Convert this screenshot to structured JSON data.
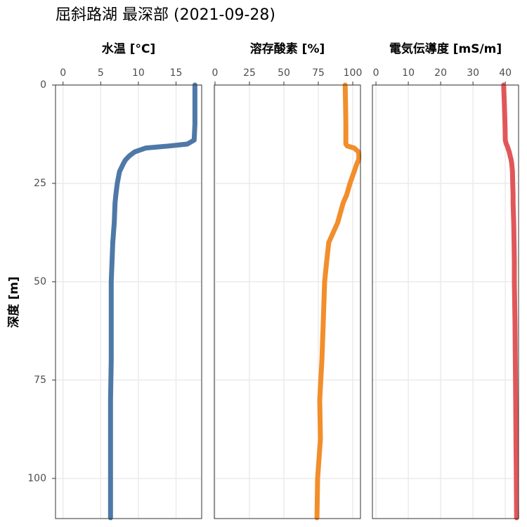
{
  "title": "屈斜路湖 最深部 (2021-09-28)",
  "y_axis": {
    "label": "深度 [m]",
    "ylim": [
      0,
      110.2
    ],
    "yticks": [
      0,
      25,
      50,
      75,
      100
    ],
    "inverted": true,
    "grid": true
  },
  "chart_data": [
    {
      "type": "line",
      "xlabel": "水温 [°C]",
      "xlim": [
        -1.0,
        18.4
      ],
      "xticks": [
        0,
        5,
        10,
        15
      ],
      "grid": true,
      "color": "#4e79a7",
      "y": [
        0,
        5,
        10,
        14,
        15,
        15.5,
        16,
        17,
        18,
        19,
        20,
        22,
        25,
        28,
        30,
        35,
        40,
        45,
        50,
        60,
        70,
        80,
        90,
        100,
        110
      ],
      "values": [
        17.5,
        17.5,
        17.5,
        17.4,
        16.5,
        14,
        11,
        9.5,
        8.8,
        8.3,
        8.0,
        7.5,
        7.2,
        7.0,
        6.9,
        6.8,
        6.6,
        6.5,
        6.4,
        6.4,
        6.4,
        6.3,
        6.3,
        6.3,
        6.3
      ]
    },
    {
      "type": "line",
      "xlabel": "溶存酸素 [%]",
      "xlim": [
        -0.5,
        105.6
      ],
      "xticks": [
        0,
        25,
        50,
        75,
        100
      ],
      "grid": true,
      "color": "#f28e2b",
      "y": [
        0,
        5,
        10,
        14,
        15,
        15.5,
        16,
        17,
        18,
        19,
        20,
        22,
        25,
        28,
        30,
        35,
        40,
        45,
        50,
        60,
        70,
        80,
        90,
        100,
        110
      ],
      "values": [
        94.5,
        94.8,
        95,
        95,
        95,
        96,
        101,
        104.2,
        104.5,
        104.3,
        103,
        101,
        98,
        95.5,
        93,
        89,
        82.6,
        81,
        79.6,
        78.6,
        77.6,
        76,
        76.5,
        74.5,
        74
      ]
    },
    {
      "type": "line",
      "xlabel": "電気伝導度 [mS/m]",
      "xlim": [
        -1.1,
        44.1
      ],
      "xticks": [
        0,
        10,
        20,
        30,
        40
      ],
      "grid": true,
      "color": "#e15759",
      "y": [
        0,
        5,
        10,
        14,
        15,
        15.5,
        16,
        17,
        18,
        19,
        20,
        22,
        25,
        28,
        30,
        35,
        40,
        45,
        50,
        60,
        70,
        80,
        90,
        100,
        110
      ],
      "values": [
        39.5,
        39.7,
        39.9,
        40,
        40.3,
        40.6,
        40.8,
        41.2,
        41.5,
        41.8,
        42,
        42.2,
        42.3,
        42.4,
        42.4,
        42.6,
        42.7,
        42.8,
        42.8,
        43,
        43.1,
        43.2,
        43.3,
        43.4,
        43.5
      ]
    }
  ]
}
